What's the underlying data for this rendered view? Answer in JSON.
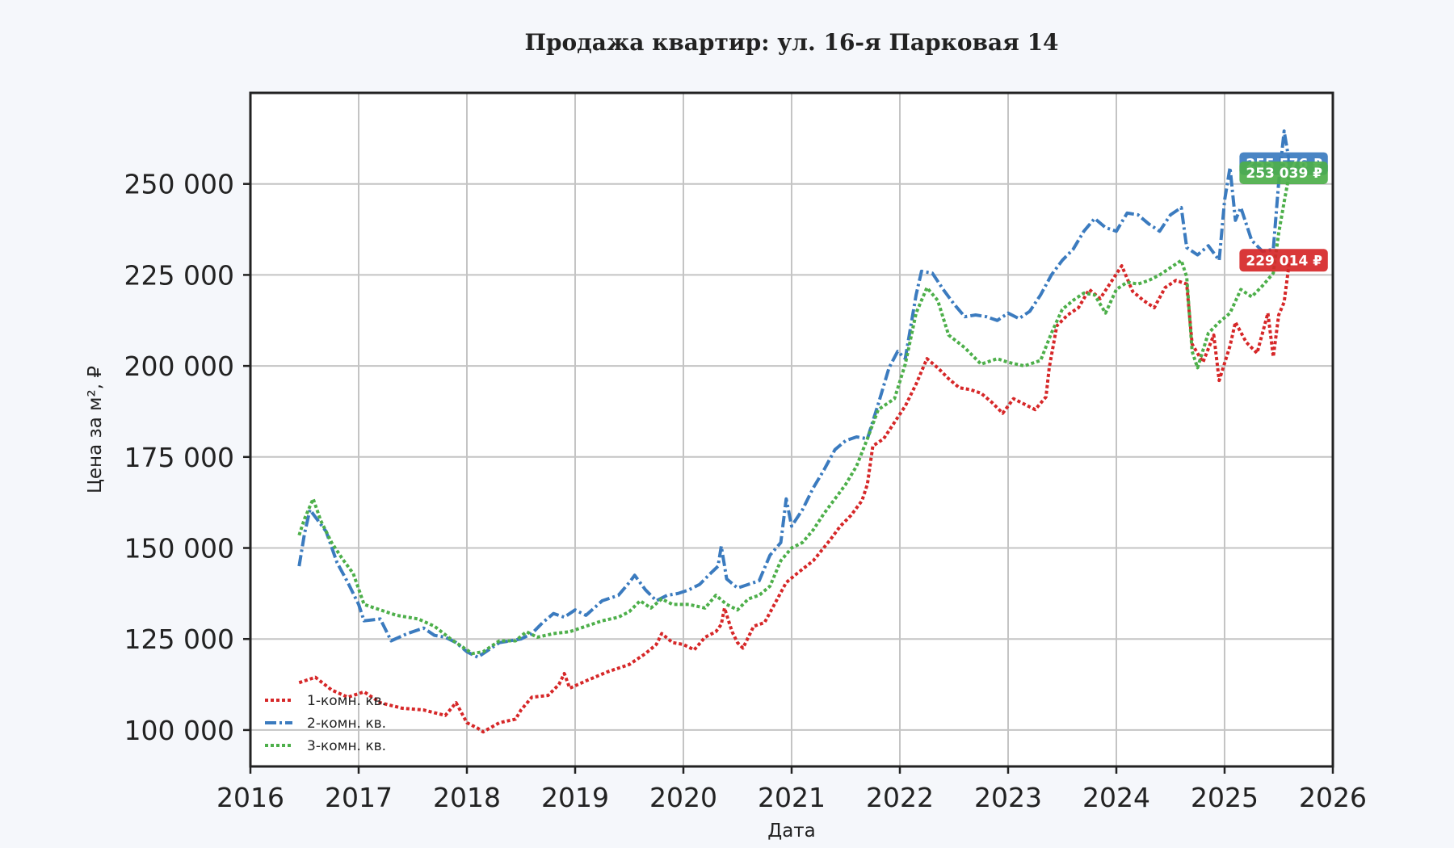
{
  "chart_data": {
    "type": "line",
    "title": "Продажа квартир: ул. 16-я Парковая 14",
    "xlabel": "Дата",
    "ylabel": "Цена за м², ₽",
    "xlim": [
      2016,
      2026
    ],
    "ylim": [
      90000,
      275000
    ],
    "x_ticks": [
      2016,
      2017,
      2018,
      2019,
      2020,
      2021,
      2022,
      2023,
      2024,
      2025,
      2026
    ],
    "x_tick_labels": [
      "2016",
      "2017",
      "2018",
      "2019",
      "2020",
      "2021",
      "2022",
      "2023",
      "2024",
      "2025",
      "2026"
    ],
    "y_ticks": [
      100000,
      125000,
      150000,
      175000,
      200000,
      225000,
      250000
    ],
    "y_tick_labels": [
      "100 000",
      "125 000",
      "150 000",
      "175 000",
      "200 000",
      "225 000",
      "250 000"
    ],
    "grid": true,
    "legend_position": "lower-left",
    "series": [
      {
        "name": "1-комн. кв.",
        "color": "#d62728",
        "style": "dotted",
        "end_label": "229 014 ₽",
        "points": [
          [
            2016.45,
            113000
          ],
          [
            2016.6,
            114500
          ],
          [
            2016.75,
            111000
          ],
          [
            2016.9,
            109000
          ],
          [
            2017.05,
            110500
          ],
          [
            2017.2,
            107500
          ],
          [
            2017.4,
            106000
          ],
          [
            2017.6,
            105500
          ],
          [
            2017.8,
            104000
          ],
          [
            2017.9,
            107500
          ],
          [
            2018.0,
            102000
          ],
          [
            2018.1,
            100500
          ],
          [
            2018.15,
            99500
          ],
          [
            2018.3,
            102000
          ],
          [
            2018.45,
            103000
          ],
          [
            2018.5,
            105500
          ],
          [
            2018.6,
            109000
          ],
          [
            2018.75,
            109500
          ],
          [
            2018.85,
            112500
          ],
          [
            2018.9,
            115500
          ],
          [
            2018.95,
            111500
          ],
          [
            2019.1,
            113500
          ],
          [
            2019.3,
            116000
          ],
          [
            2019.5,
            118000
          ],
          [
            2019.65,
            121000
          ],
          [
            2019.75,
            123500
          ],
          [
            2019.8,
            126500
          ],
          [
            2019.9,
            124000
          ],
          [
            2020.0,
            123500
          ],
          [
            2020.1,
            122000
          ],
          [
            2020.2,
            125500
          ],
          [
            2020.3,
            127000
          ],
          [
            2020.35,
            129000
          ],
          [
            2020.38,
            133500
          ],
          [
            2020.45,
            127000
          ],
          [
            2020.5,
            124000
          ],
          [
            2020.55,
            122500
          ],
          [
            2020.65,
            128500
          ],
          [
            2020.75,
            129500
          ],
          [
            2020.85,
            135000
          ],
          [
            2020.95,
            140500
          ],
          [
            2021.05,
            143000
          ],
          [
            2021.2,
            146500
          ],
          [
            2021.35,
            152000
          ],
          [
            2021.45,
            156000
          ],
          [
            2021.55,
            159000
          ],
          [
            2021.65,
            163000
          ],
          [
            2021.7,
            167500
          ],
          [
            2021.75,
            178000
          ],
          [
            2021.85,
            180000
          ],
          [
            2021.95,
            184500
          ],
          [
            2022.05,
            189000
          ],
          [
            2022.15,
            195000
          ],
          [
            2022.25,
            202000
          ],
          [
            2022.35,
            199500
          ],
          [
            2022.45,
            196500
          ],
          [
            2022.55,
            194000
          ],
          [
            2022.65,
            193500
          ],
          [
            2022.75,
            192500
          ],
          [
            2022.85,
            190000
          ],
          [
            2022.95,
            187000
          ],
          [
            2023.05,
            191000
          ],
          [
            2023.15,
            189500
          ],
          [
            2023.25,
            188000
          ],
          [
            2023.35,
            191500
          ],
          [
            2023.38,
            199500
          ],
          [
            2023.45,
            211000
          ],
          [
            2023.55,
            214000
          ],
          [
            2023.65,
            216000
          ],
          [
            2023.75,
            221000
          ],
          [
            2023.85,
            218500
          ],
          [
            2023.95,
            223000
          ],
          [
            2024.05,
            227500
          ],
          [
            2024.15,
            220500
          ],
          [
            2024.25,
            218000
          ],
          [
            2024.35,
            216000
          ],
          [
            2024.45,
            221500
          ],
          [
            2024.55,
            223500
          ],
          [
            2024.65,
            222500
          ],
          [
            2024.7,
            206000
          ],
          [
            2024.8,
            201000
          ],
          [
            2024.9,
            208500
          ],
          [
            2024.95,
            196000
          ],
          [
            2025.05,
            205500
          ],
          [
            2025.1,
            212000
          ],
          [
            2025.2,
            206500
          ],
          [
            2025.3,
            203500
          ],
          [
            2025.35,
            209000
          ],
          [
            2025.4,
            214500
          ],
          [
            2025.45,
            202500
          ],
          [
            2025.5,
            214000
          ],
          [
            2025.55,
            217500
          ],
          [
            2025.6,
            229014
          ]
        ]
      },
      {
        "name": "2-комн. кв.",
        "color": "#3b7bbf",
        "style": "dashdot",
        "end_label": "255 576 ₽",
        "points": [
          [
            2016.45,
            145000
          ],
          [
            2016.5,
            154000
          ],
          [
            2016.55,
            160500
          ],
          [
            2016.6,
            158500
          ],
          [
            2016.7,
            154500
          ],
          [
            2016.8,
            146000
          ],
          [
            2016.9,
            140500
          ],
          [
            2017.0,
            134500
          ],
          [
            2017.05,
            130000
          ],
          [
            2017.2,
            130500
          ],
          [
            2017.3,
            124500
          ],
          [
            2017.45,
            126500
          ],
          [
            2017.6,
            128000
          ],
          [
            2017.7,
            126000
          ],
          [
            2017.8,
            125500
          ],
          [
            2017.9,
            124000
          ],
          [
            2018.0,
            121500
          ],
          [
            2018.1,
            120000
          ],
          [
            2018.2,
            122000
          ],
          [
            2018.3,
            124000
          ],
          [
            2018.5,
            125000
          ],
          [
            2018.6,
            126500
          ],
          [
            2018.7,
            129500
          ],
          [
            2018.8,
            132000
          ],
          [
            2018.9,
            131000
          ],
          [
            2019.0,
            133000
          ],
          [
            2019.1,
            131500
          ],
          [
            2019.25,
            135500
          ],
          [
            2019.4,
            137000
          ],
          [
            2019.5,
            140500
          ],
          [
            2019.55,
            142500
          ],
          [
            2019.65,
            138500
          ],
          [
            2019.75,
            135500
          ],
          [
            2019.85,
            137000
          ],
          [
            2019.95,
            137500
          ],
          [
            2020.05,
            138500
          ],
          [
            2020.15,
            140000
          ],
          [
            2020.25,
            143000
          ],
          [
            2020.32,
            145000
          ],
          [
            2020.35,
            150500
          ],
          [
            2020.4,
            141500
          ],
          [
            2020.5,
            139000
          ],
          [
            2020.6,
            140000
          ],
          [
            2020.7,
            141000
          ],
          [
            2020.8,
            148000
          ],
          [
            2020.9,
            151500
          ],
          [
            2020.95,
            163500
          ],
          [
            2021.0,
            156000
          ],
          [
            2021.1,
            160500
          ],
          [
            2021.2,
            166500
          ],
          [
            2021.3,
            171500
          ],
          [
            2021.4,
            177000
          ],
          [
            2021.5,
            179500
          ],
          [
            2021.6,
            180500
          ],
          [
            2021.7,
            180000
          ],
          [
            2021.8,
            189500
          ],
          [
            2021.9,
            199500
          ],
          [
            2021.98,
            204000
          ],
          [
            2022.05,
            202000
          ],
          [
            2022.15,
            219500
          ],
          [
            2022.2,
            226000
          ],
          [
            2022.3,
            225500
          ],
          [
            2022.4,
            221000
          ],
          [
            2022.5,
            217000
          ],
          [
            2022.6,
            213500
          ],
          [
            2022.7,
            214000
          ],
          [
            2022.8,
            213500
          ],
          [
            2022.9,
            212500
          ],
          [
            2023.0,
            214500
          ],
          [
            2023.1,
            213000
          ],
          [
            2023.2,
            215000
          ],
          [
            2023.3,
            219500
          ],
          [
            2023.4,
            225000
          ],
          [
            2023.5,
            229000
          ],
          [
            2023.6,
            232000
          ],
          [
            2023.7,
            237000
          ],
          [
            2023.8,
            240500
          ],
          [
            2023.9,
            238000
          ],
          [
            2024.0,
            237000
          ],
          [
            2024.1,
            242000
          ],
          [
            2024.2,
            241500
          ],
          [
            2024.3,
            239000
          ],
          [
            2024.4,
            237000
          ],
          [
            2024.5,
            241500
          ],
          [
            2024.6,
            243500
          ],
          [
            2024.65,
            232500
          ],
          [
            2024.75,
            230500
          ],
          [
            2024.85,
            233000
          ],
          [
            2024.95,
            229000
          ],
          [
            2025.0,
            245500
          ],
          [
            2025.05,
            254500
          ],
          [
            2025.1,
            240000
          ],
          [
            2025.15,
            243500
          ],
          [
            2025.25,
            234500
          ],
          [
            2025.35,
            231500
          ],
          [
            2025.45,
            232000
          ],
          [
            2025.5,
            250500
          ],
          [
            2025.55,
            264500
          ],
          [
            2025.6,
            255576
          ]
        ]
      },
      {
        "name": "3-комн. кв.",
        "color": "#4daf4a",
        "style": "dotted",
        "end_label": "253 039 ₽",
        "points": [
          [
            2016.45,
            153500
          ],
          [
            2016.5,
            158000
          ],
          [
            2016.58,
            163500
          ],
          [
            2016.65,
            157500
          ],
          [
            2016.75,
            151500
          ],
          [
            2016.85,
            147000
          ],
          [
            2016.95,
            143000
          ],
          [
            2017.05,
            134500
          ],
          [
            2017.2,
            133000
          ],
          [
            2017.35,
            131500
          ],
          [
            2017.55,
            130500
          ],
          [
            2017.7,
            128500
          ],
          [
            2017.85,
            125000
          ],
          [
            2017.95,
            123000
          ],
          [
            2018.05,
            121000
          ],
          [
            2018.15,
            121500
          ],
          [
            2018.3,
            124500
          ],
          [
            2018.45,
            124500
          ],
          [
            2018.55,
            127000
          ],
          [
            2018.65,
            125500
          ],
          [
            2018.8,
            126500
          ],
          [
            2018.95,
            127000
          ],
          [
            2019.1,
            128500
          ],
          [
            2019.25,
            130000
          ],
          [
            2019.4,
            131000
          ],
          [
            2019.5,
            132500
          ],
          [
            2019.6,
            135500
          ],
          [
            2019.7,
            133500
          ],
          [
            2019.8,
            136000
          ],
          [
            2019.9,
            134500
          ],
          [
            2020.05,
            134500
          ],
          [
            2020.2,
            133500
          ],
          [
            2020.3,
            137000
          ],
          [
            2020.4,
            134500
          ],
          [
            2020.5,
            133000
          ],
          [
            2020.6,
            136000
          ],
          [
            2020.7,
            137000
          ],
          [
            2020.8,
            139500
          ],
          [
            2020.9,
            146500
          ],
          [
            2021.0,
            150000
          ],
          [
            2021.1,
            151500
          ],
          [
            2021.2,
            155000
          ],
          [
            2021.3,
            159500
          ],
          [
            2021.4,
            163500
          ],
          [
            2021.5,
            167500
          ],
          [
            2021.6,
            172500
          ],
          [
            2021.7,
            180000
          ],
          [
            2021.8,
            188000
          ],
          [
            2021.95,
            191000
          ],
          [
            2022.05,
            200500
          ],
          [
            2022.15,
            214500
          ],
          [
            2022.25,
            221500
          ],
          [
            2022.35,
            218000
          ],
          [
            2022.45,
            208500
          ],
          [
            2022.6,
            205000
          ],
          [
            2022.75,
            200500
          ],
          [
            2022.9,
            202000
          ],
          [
            2023.0,
            201000
          ],
          [
            2023.15,
            200000
          ],
          [
            2023.3,
            201500
          ],
          [
            2023.4,
            209000
          ],
          [
            2023.5,
            215500
          ],
          [
            2023.6,
            218000
          ],
          [
            2023.7,
            220000
          ],
          [
            2023.8,
            219500
          ],
          [
            2023.9,
            214500
          ],
          [
            2024.0,
            221000
          ],
          [
            2024.1,
            223000
          ],
          [
            2024.2,
            222500
          ],
          [
            2024.3,
            223500
          ],
          [
            2024.4,
            225000
          ],
          [
            2024.5,
            227000
          ],
          [
            2024.6,
            229000
          ],
          [
            2024.65,
            224500
          ],
          [
            2024.7,
            204000
          ],
          [
            2024.75,
            199500
          ],
          [
            2024.85,
            209000
          ],
          [
            2024.95,
            212000
          ],
          [
            2025.05,
            214500
          ],
          [
            2025.15,
            221000
          ],
          [
            2025.25,
            219000
          ],
          [
            2025.35,
            222000
          ],
          [
            2025.45,
            225500
          ],
          [
            2025.5,
            236500
          ],
          [
            2025.55,
            245000
          ],
          [
            2025.6,
            253039
          ]
        ]
      }
    ]
  }
}
